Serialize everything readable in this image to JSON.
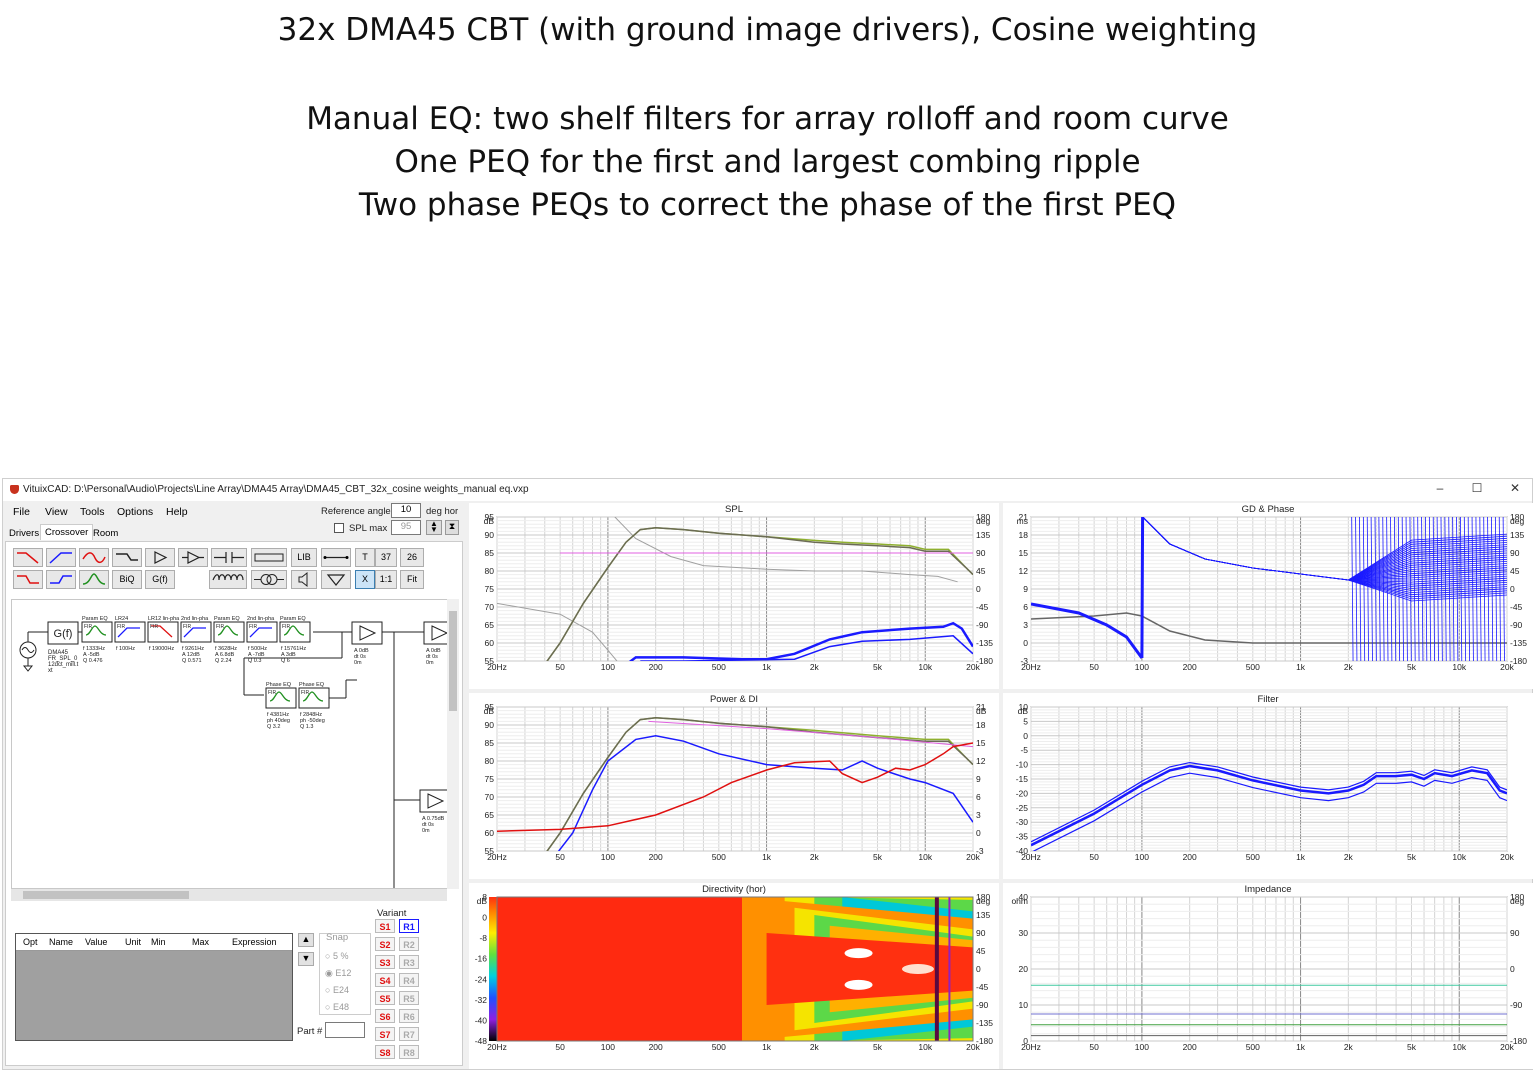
{
  "slide": {
    "title": "32x DMA45 CBT (with ground image drivers), Cosine weighting",
    "lines": [
      "Manual  EQ: two shelf filters for array rolloff and room curve",
      "One PEQ for the first and largest combing ripple",
      "Two phase PEQs to correct the phase of the first PEQ"
    ]
  },
  "app": {
    "title": "VituixCAD: D:\\Personal\\Audio\\Projects\\Line Array\\DMA45 Array\\DMA45_CBT_32x_cosine weights_manual eq.vxp",
    "menu": [
      "File",
      "View",
      "Tools",
      "Options",
      "Help"
    ],
    "window_buttons": [
      "–",
      "☐",
      "✕"
    ],
    "ref_angle_label": "Reference angle",
    "ref_angle_value": "10",
    "ref_angle_unit": "deg hor",
    "spl_max_label": "SPL max",
    "spl_max_value": "95",
    "tabs": [
      "Drivers",
      "Crossover",
      "Room"
    ],
    "toolbar_text": [
      "BiQ",
      "G(f)",
      "LIB",
      "T",
      "37",
      "26",
      "X",
      "1:1",
      "Fit"
    ],
    "schematic": {
      "gain_label": "G(f)",
      "source_text": [
        "DMA45",
        "FR_SPL_0",
        "12dct_mill.t",
        "xt"
      ],
      "blocks": [
        {
          "title": "Param EQ",
          "tag": "FIR",
          "params": [
            "f   1333Hz",
            "A   -5dB",
            "Q   0.476"
          ]
        },
        {
          "title": "LR24",
          "tag": "FIR",
          "params": [
            "f   100Hz"
          ]
        },
        {
          "title": "LR12 lin-pha",
          "tag": "FIR",
          "params": [
            "f   19000Hz"
          ]
        },
        {
          "title": "2nd lin-pha",
          "tag": "FIR",
          "params": [
            "f   9261Hz",
            "A   12dB",
            "Q   0.571"
          ]
        },
        {
          "title": "Param EQ",
          "tag": "FIR",
          "params": [
            "f   3628Hz",
            "A   6.8dB",
            "Q   2.24"
          ]
        },
        {
          "title": "2nd lin-pha",
          "tag": "FIR",
          "params": [
            "f   500Hz",
            "A   -7dB",
            "Q   0.3"
          ]
        },
        {
          "title": "Param EQ",
          "tag": "FIR",
          "params": [
            "f   15761Hz",
            "A   3dB",
            "Q   6"
          ]
        }
      ],
      "phase_blocks": [
        {
          "title": "Phase EQ",
          "tag": "FIR",
          "params": [
            "f   4381Hz",
            "ph  40deg",
            "Q   3.2"
          ]
        },
        {
          "title": "Phase EQ",
          "tag": "FIR",
          "params": [
            "f   2848Hz",
            "ph  -50deg",
            "Q   1.3"
          ]
        }
      ],
      "amp1": [
        "A   0dB",
        "dt  0s",
        "   0m"
      ],
      "amp2": [
        "A   0dB",
        "dt  0s",
        "   0m"
      ],
      "amp3": [
        "A   0.75dB",
        "dt  0s",
        "   0m"
      ]
    },
    "opt_table_headers": [
      "Opt",
      "Name",
      "Value",
      "Unit",
      "Min",
      "Max",
      "Expression"
    ],
    "snap": {
      "label": "Snap",
      "options": [
        "5 %",
        "E12",
        "E24",
        "E48"
      ],
      "selected": "E12"
    },
    "part_label": "Part #",
    "variant": {
      "label": "Variant",
      "s": [
        "S1",
        "S2",
        "S3",
        "S4",
        "S5",
        "S6",
        "S7",
        "S8"
      ],
      "r": [
        "R1",
        "R2",
        "R3",
        "R4",
        "R5",
        "R6",
        "R7",
        "R8"
      ]
    }
  },
  "colors": {
    "blue": "#1a1aff",
    "red": "#e01010",
    "olive": "#6b6b55",
    "green": "#8fb030",
    "magenta": "#e060e0",
    "grey": "#a0a0a0"
  },
  "charts": {
    "spl": {
      "title": "SPL",
      "y_unit": "dB",
      "y2_unit": "deg",
      "x_ticks": [
        "20Hz",
        "50",
        "100",
        "200",
        "500",
        "1k",
        "2k",
        "5k",
        "10k",
        "20k"
      ],
      "y_ticks": [
        "95",
        "90",
        "85",
        "80",
        "75",
        "70",
        "65",
        "60",
        "55"
      ],
      "y2_ticks": [
        "180",
        "135",
        "90",
        "45",
        "0",
        "-45",
        "-90",
        "-135",
        "-180"
      ]
    },
    "gd": {
      "title": "GD & Phase",
      "y_unit": "ms",
      "y2_unit": "deg",
      "x_ticks": [
        "20Hz",
        "50",
        "100",
        "200",
        "500",
        "1k",
        "2k",
        "5k",
        "10k",
        "20k"
      ],
      "y_ticks": [
        "21",
        "18",
        "15",
        "12",
        "9",
        "6",
        "3",
        "0",
        "-3"
      ],
      "y2_ticks": [
        "180",
        "135",
        "90",
        "45",
        "0",
        "-45",
        "-90",
        "-135",
        "-180"
      ]
    },
    "power": {
      "title": "Power & DI",
      "y_unit": "dB",
      "y2_unit": "dB",
      "x_ticks": [
        "20Hz",
        "50",
        "100",
        "200",
        "500",
        "1k",
        "2k",
        "5k",
        "10k",
        "20k"
      ],
      "y_ticks": [
        "95",
        "90",
        "85",
        "80",
        "75",
        "70",
        "65",
        "60",
        "55"
      ],
      "y2_ticks": [
        "21",
        "18",
        "15",
        "12",
        "9",
        "6",
        "3",
        "0",
        "-3"
      ]
    },
    "filter": {
      "title": "Filter",
      "y_unit": "dB",
      "x_ticks": [
        "20Hz",
        "50",
        "100",
        "200",
        "500",
        "1k",
        "2k",
        "5k",
        "10k",
        "20k"
      ],
      "y_ticks": [
        "10",
        "5",
        "0",
        "-5",
        "-10",
        "-15",
        "-20",
        "-25",
        "-30",
        "-35",
        "-40"
      ]
    },
    "directivity": {
      "title": "Directivity (hor)",
      "y_unit": "dB",
      "y2_unit": "deg",
      "x_ticks": [
        "20Hz",
        "50",
        "100",
        "200",
        "500",
        "1k",
        "2k",
        "5k",
        "10k",
        "20k"
      ],
      "scale_ticks": [
        "8",
        "0",
        "-8",
        "-16",
        "-24",
        "-32",
        "-40",
        "-48"
      ],
      "y2_ticks": [
        "180",
        "135",
        "90",
        "45",
        "0",
        "-45",
        "-90",
        "-135",
        "-180"
      ]
    },
    "impedance": {
      "title": "Impedance",
      "y_unit": "ohm",
      "y2_unit": "deg",
      "x_ticks": [
        "20Hz",
        "50",
        "100",
        "200",
        "500",
        "1k",
        "2k",
        "5k",
        "10k",
        "20k"
      ],
      "y_ticks": [
        "40",
        "30",
        "20",
        "10",
        "0"
      ],
      "y2_ticks": [
        "180",
        "90",
        "0",
        "-90",
        "-180"
      ]
    }
  }
}
